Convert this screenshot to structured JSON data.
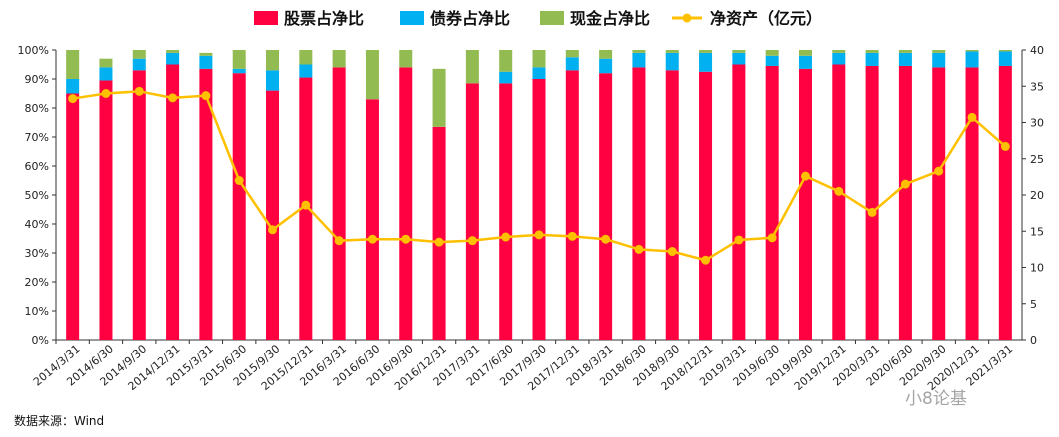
{
  "chart_data": {
    "type": "bar",
    "stacked": true,
    "secondary_type": "line",
    "categories": [
      "2014/3/31",
      "2014/6/30",
      "2014/9/30",
      "2014/12/31",
      "2015/3/31",
      "2015/6/30",
      "2015/9/30",
      "2015/12/31",
      "2016/3/31",
      "2016/6/30",
      "2016/9/30",
      "2016/12/31",
      "2017/3/31",
      "2017/6/30",
      "2017/9/30",
      "2017/12/31",
      "2018/3/31",
      "2018/6/30",
      "2018/9/30",
      "2018/12/31",
      "2019/3/31",
      "2019/6/30",
      "2019/9/30",
      "2019/12/31",
      "2020/3/31",
      "2020/6/30",
      "2020/9/30",
      "2020/12/31",
      "2021/3/31"
    ],
    "series": [
      {
        "name": "股票占净比",
        "color": "#FF0040",
        "axis": "left",
        "values": [
          85,
          89.5,
          93,
          95,
          93.5,
          92,
          86,
          90.5,
          94,
          83,
          94,
          73.5,
          88.5,
          88.5,
          90,
          93,
          92,
          94,
          93,
          92.5,
          95,
          94.5,
          93.5,
          95,
          94.5,
          94.5,
          94,
          94,
          94.5
        ]
      },
      {
        "name": "债券占净比",
        "color": "#00B0F0",
        "axis": "left",
        "values": [
          5,
          4.5,
          4,
          4,
          4.5,
          1.5,
          7,
          4.5,
          0,
          0,
          0,
          0,
          0,
          4,
          4,
          4.5,
          5,
          5,
          6,
          6.5,
          4,
          3.5,
          4.5,
          4,
          4.5,
          4.5,
          5,
          5.5,
          5
        ]
      },
      {
        "name": "现金占净比",
        "color": "#92BB52",
        "axis": "left",
        "values": [
          10,
          3,
          3,
          1,
          1,
          6.5,
          7,
          5,
          6,
          17,
          6,
          20,
          11.5,
          7.5,
          6,
          2.5,
          3,
          1,
          1,
          1,
          1,
          2,
          2,
          1,
          1,
          1,
          1,
          0.5,
          0.5
        ]
      },
      {
        "name": "净资产（亿元）",
        "color": "#FFC000",
        "axis": "right",
        "type": "line",
        "values": [
          33.3,
          34,
          34.3,
          33.4,
          33.7,
          22,
          15.2,
          18.6,
          13.7,
          13.9,
          13.9,
          13.5,
          13.7,
          14.2,
          14.5,
          14.3,
          13.9,
          12.5,
          12.2,
          11,
          13.8,
          14.1,
          22.6,
          20.5,
          17.6,
          21.5,
          23.3,
          30.7,
          26.7
        ]
      }
    ],
    "ylim": [
      0,
      100
    ],
    "yticks": [
      "0%",
      "10%",
      "20%",
      "30%",
      "40%",
      "50%",
      "60%",
      "70%",
      "80%",
      "90%",
      "100%"
    ],
    "y2lim": [
      0,
      40
    ],
    "y2ticks": [
      "0",
      "5",
      "10",
      "15",
      "20",
      "25",
      "30",
      "35",
      "40"
    ],
    "legend_position": "top",
    "grid": false
  },
  "source": "数据来源：Wind",
  "watermark": "小8论基"
}
